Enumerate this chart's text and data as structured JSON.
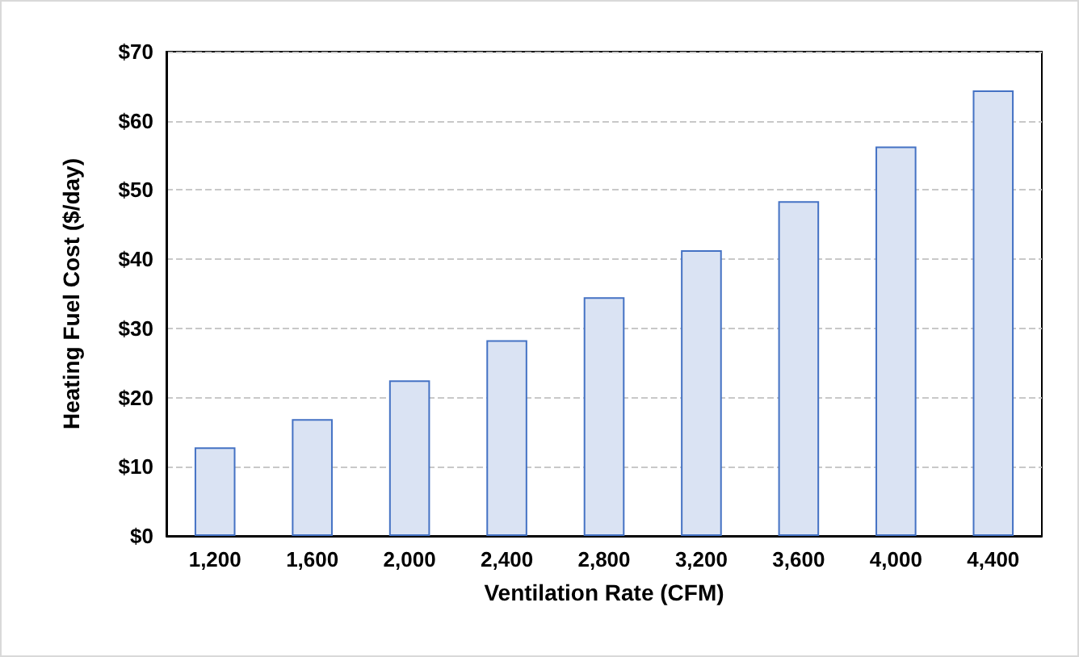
{
  "chart_data": {
    "type": "bar",
    "xlabel": "Ventilation Rate (CFM)",
    "ylabel": "Heating Fuel Cost ($/day)",
    "categories": [
      "1,200",
      "1,600",
      "2,000",
      "2,400",
      "2,800",
      "3,200",
      "3,600",
      "4,000",
      "4,400"
    ],
    "values": [
      12.8,
      16.9,
      22.5,
      28.3,
      34.5,
      41.3,
      48.4,
      56.3,
      64.4
    ],
    "color": "#dae3f3",
    "ylim": [
      0,
      70
    ],
    "yticks": [
      {
        "value": 0,
        "label": "$0"
      },
      {
        "value": 10,
        "label": "$10"
      },
      {
        "value": 20,
        "label": "$20"
      },
      {
        "value": 30,
        "label": "$30"
      },
      {
        "value": 40,
        "label": "$40"
      },
      {
        "value": 50,
        "label": "$50"
      },
      {
        "value": 60,
        "label": "$60"
      },
      {
        "value": 70,
        "label": "$70"
      }
    ],
    "grid": "y"
  }
}
